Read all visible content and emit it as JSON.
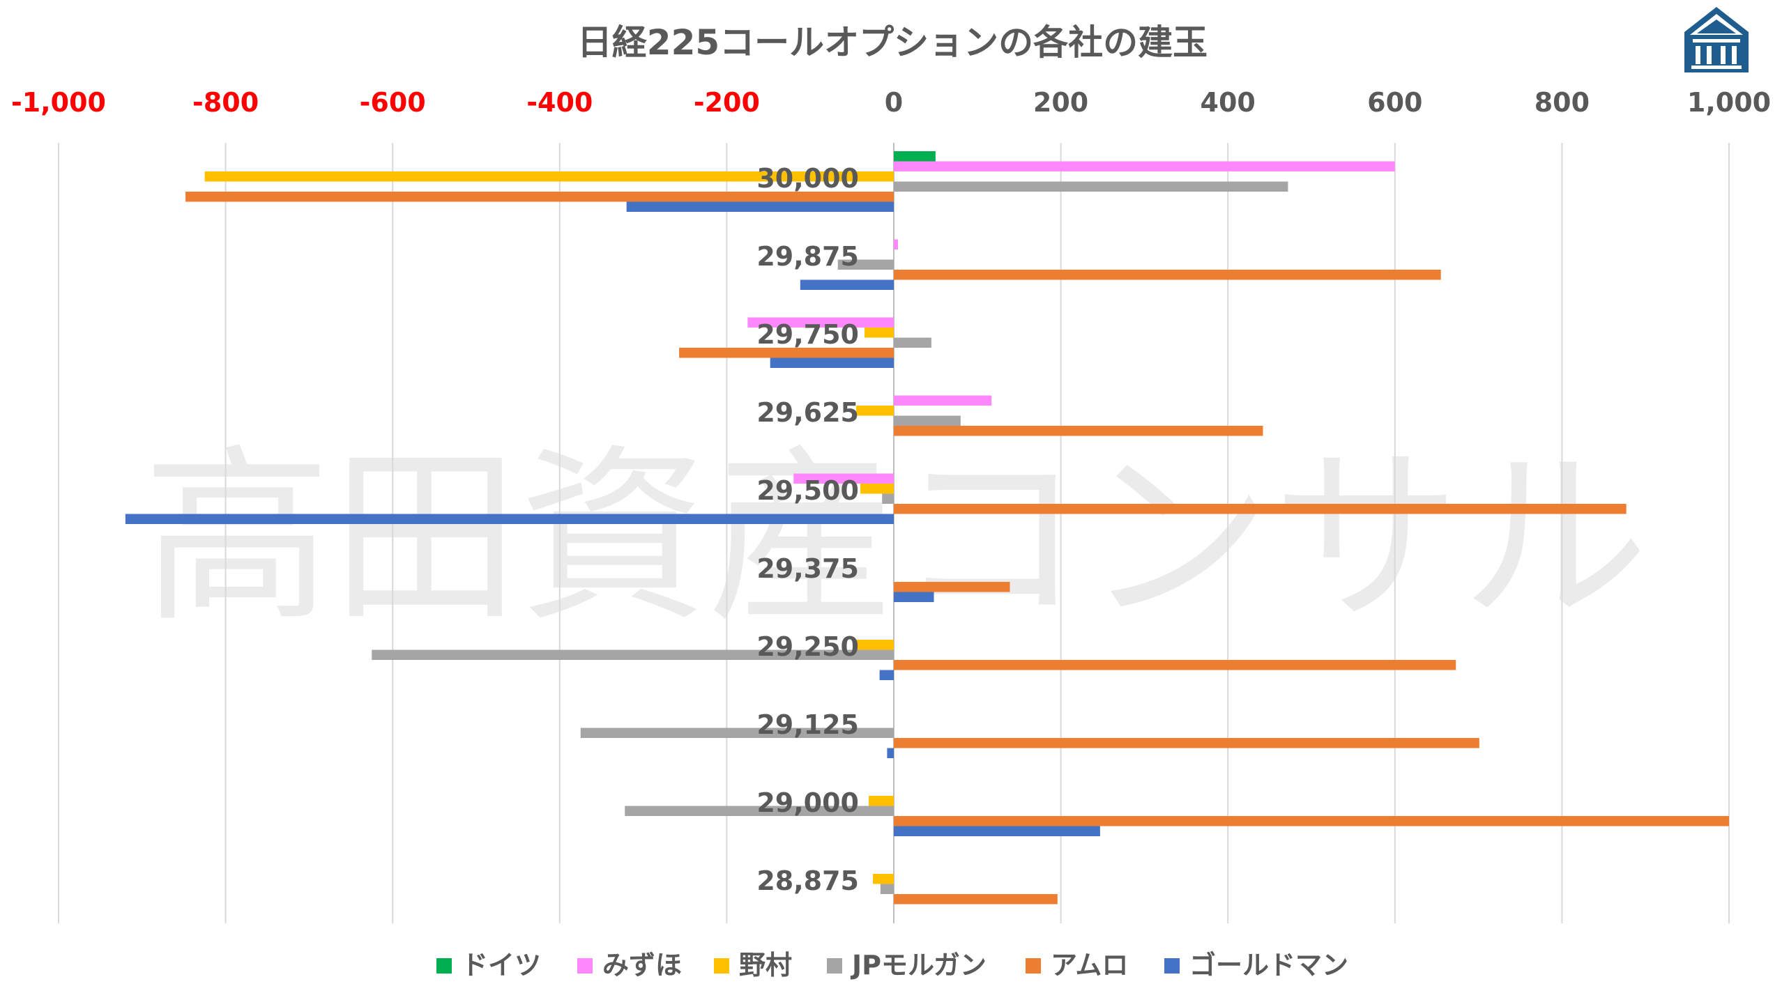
{
  "chart_data": {
    "type": "bar",
    "orientation": "horizontal",
    "title": "日経225コールオプションの各社の建玉",
    "watermark": "高田資産コンサル",
    "logo": "bank-logo-icon",
    "xlim": [
      -1000,
      1000
    ],
    "x_ticks": [
      {
        "value": -1000,
        "label": "-1,000"
      },
      {
        "value": -800,
        "label": "-800"
      },
      {
        "value": -600,
        "label": "-600"
      },
      {
        "value": -400,
        "label": "-400"
      },
      {
        "value": -200,
        "label": "-200"
      },
      {
        "value": 0,
        "label": "0"
      },
      {
        "value": 200,
        "label": "200"
      },
      {
        "value": 400,
        "label": "400"
      },
      {
        "value": 600,
        "label": "600"
      },
      {
        "value": 800,
        "label": "800"
      },
      {
        "value": 1000,
        "label": "1,000"
      }
    ],
    "negative_tick_color": "#ff0000",
    "positive_tick_color": "#595959",
    "grid": true,
    "legend_position": "bottom",
    "categories": [
      "30,000",
      "29,875",
      "29,750",
      "29,625",
      "29,500",
      "29,375",
      "29,250",
      "29,125",
      "29,000",
      "28,875"
    ],
    "series": [
      {
        "name": "ドイツ",
        "color": "#00b050",
        "values": [
          50,
          0,
          0,
          0,
          0,
          0,
          0,
          0,
          0,
          0
        ]
      },
      {
        "name": "みずほ",
        "color": "#ff88ff",
        "values": [
          600,
          5,
          -175,
          117,
          -120,
          0,
          0,
          0,
          0,
          0
        ]
      },
      {
        "name": "野村",
        "color": "#ffc000",
        "values": [
          -825,
          0,
          -35,
          -45,
          -40,
          0,
          -45,
          0,
          -30,
          -25
        ]
      },
      {
        "name": "JPモルガン",
        "color": "#a5a5a5",
        "values": [
          472,
          -67,
          45,
          80,
          -14,
          0,
          -625,
          -375,
          -322,
          -16
        ]
      },
      {
        "name": "アムロ",
        "color": "#ed7d31",
        "values": [
          -848,
          655,
          -257,
          442,
          877,
          139,
          673,
          701,
          1000,
          196
        ]
      },
      {
        "name": "ゴールドマン",
        "color": "#4472c4",
        "values": [
          -320,
          -112,
          -148,
          0,
          -920,
          48,
          -17,
          -8,
          247,
          0
        ]
      }
    ]
  }
}
